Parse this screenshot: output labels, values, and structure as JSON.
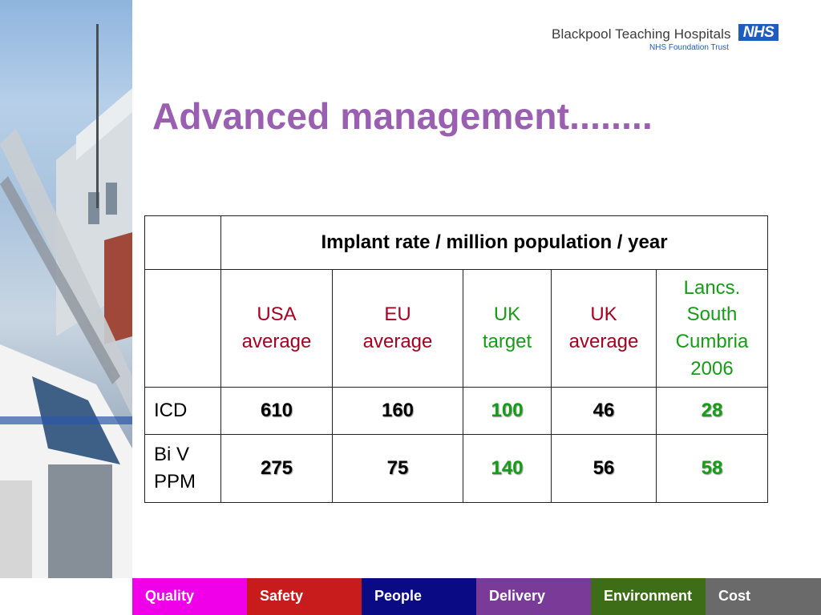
{
  "header": {
    "logo_name": "Blackpool Teaching Hospitals",
    "logo_badge": "NHS",
    "logo_subtitle": "NHS Foundation Trust"
  },
  "title": "Advanced management........",
  "table": {
    "caption": "Implant rate / million population / year",
    "columns": [
      {
        "line1": "USA",
        "line2": "average",
        "color": "#a50021"
      },
      {
        "line1": "EU",
        "line2": "average",
        "color": "#a50021"
      },
      {
        "line1": "UK",
        "line2": "target",
        "color": "#169c16"
      },
      {
        "line1": "UK",
        "line2": "average",
        "color": "#a50021"
      },
      {
        "line1": "Lancs.",
        "line2": "South",
        "line3": "Cumbria",
        "line4": "2006",
        "color": "#169c16"
      }
    ],
    "rows": [
      {
        "label": "ICD",
        "values": [
          "610",
          "160",
          "100",
          "46",
          "28"
        ]
      },
      {
        "label_line1": "Bi V",
        "label_line2": "PPM",
        "values": [
          "275",
          "75",
          "140",
          "56",
          "58"
        ]
      }
    ]
  },
  "bottom_nav": [
    {
      "label": "Quality",
      "color": "#f000e8"
    },
    {
      "label": "Safety",
      "color": "#c81c1c"
    },
    {
      "label": "People",
      "color": "#0a0a85"
    },
    {
      "label": "Delivery",
      "color": "#7a3b98"
    },
    {
      "label": "Environment",
      "color": "#3d6e17"
    },
    {
      "label": "Cost",
      "color": "#6a6a6a"
    }
  ]
}
